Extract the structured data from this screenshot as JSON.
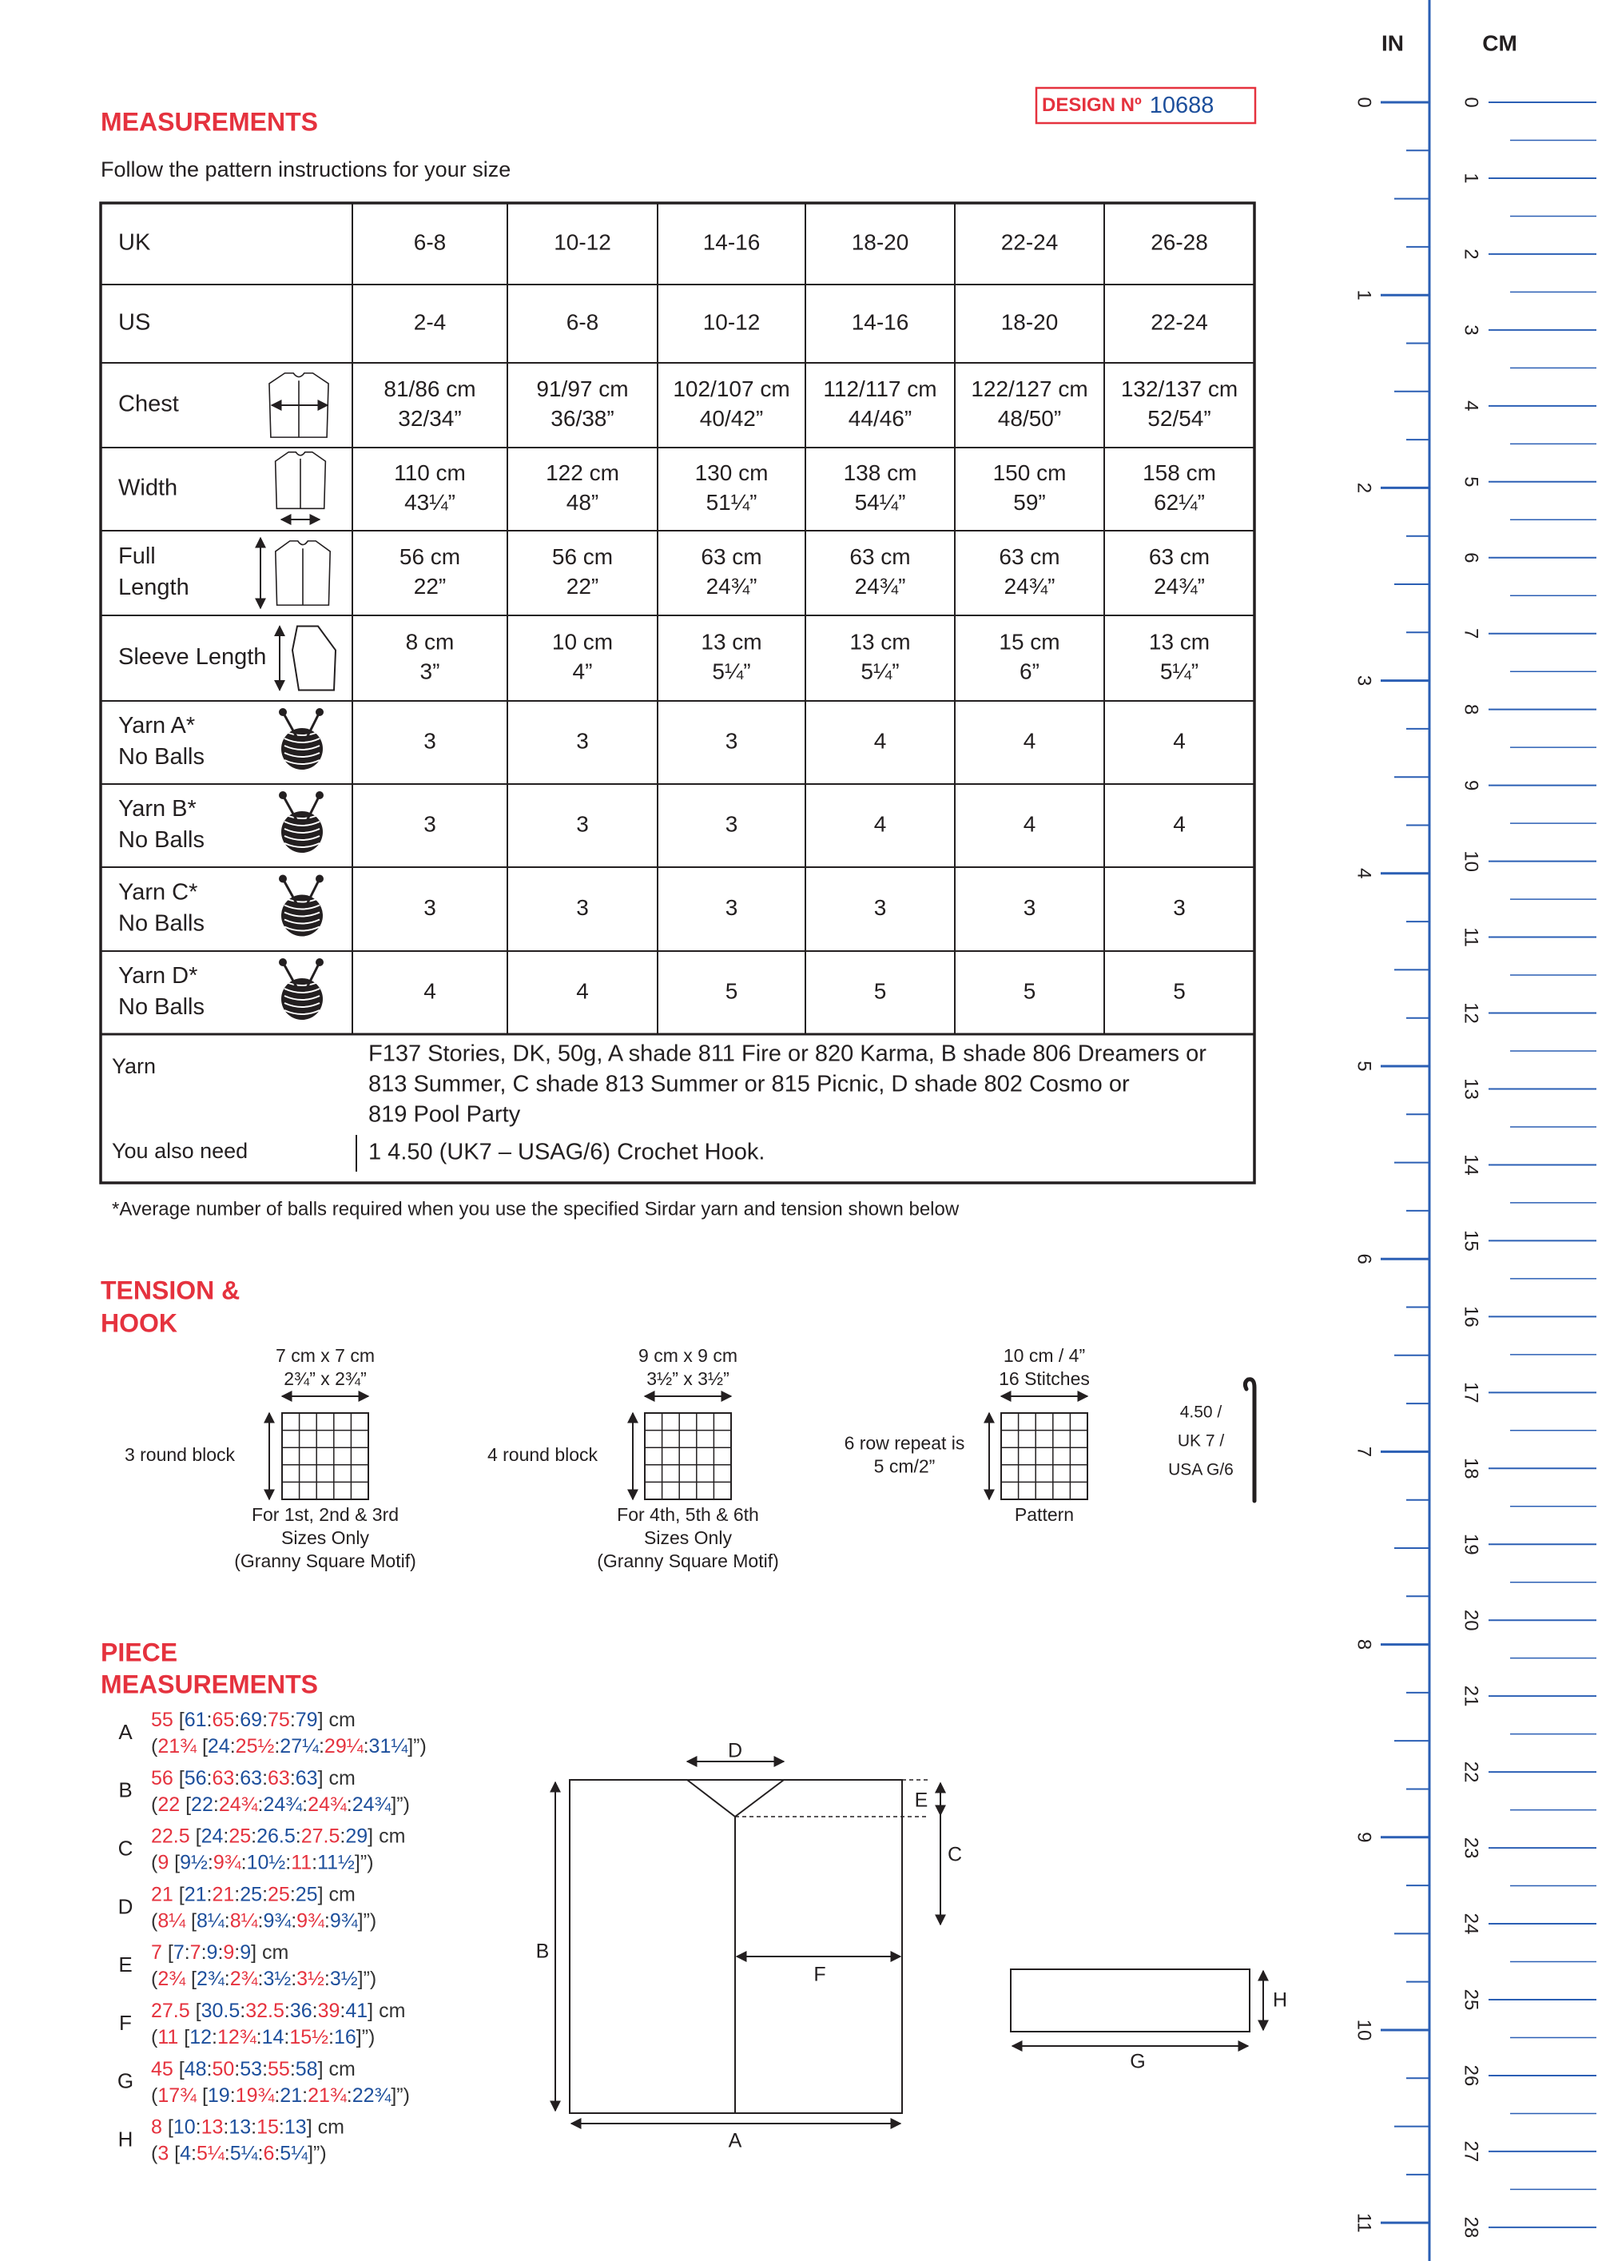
{
  "header": {
    "title": "MEASUREMENTS",
    "design_label": "DESIGN Nº",
    "design_number": "10688",
    "instruction": "Follow the pattern instructions for your size"
  },
  "table": {
    "rows": [
      {
        "label": [
          "UK"
        ],
        "cells": [
          [
            "6-8"
          ],
          [
            "10-12"
          ],
          [
            "14-16"
          ],
          [
            "18-20"
          ],
          [
            "22-24"
          ],
          [
            "26-28"
          ]
        ]
      },
      {
        "label": [
          "US"
        ],
        "cells": [
          [
            "2-4"
          ],
          [
            "6-8"
          ],
          [
            "10-12"
          ],
          [
            "14-16"
          ],
          [
            "18-20"
          ],
          [
            "22-24"
          ]
        ]
      },
      {
        "label": [
          "Chest"
        ],
        "cells": [
          [
            "81/86 cm",
            "32/34”"
          ],
          [
            "91/97 cm",
            "36/38”"
          ],
          [
            "102/107 cm",
            "40/42”"
          ],
          [
            "112/117 cm",
            "44/46”"
          ],
          [
            "122/127 cm",
            "48/50”"
          ],
          [
            "132/137 cm",
            "52/54”"
          ]
        ]
      },
      {
        "label": [
          "Width"
        ],
        "cells": [
          [
            "110 cm",
            "43¼”"
          ],
          [
            "122 cm",
            "48”"
          ],
          [
            "130 cm",
            "51¼”"
          ],
          [
            "138 cm",
            "54¼”"
          ],
          [
            "150 cm",
            "59”"
          ],
          [
            "158 cm",
            "62¼”"
          ]
        ]
      },
      {
        "label": [
          "Full",
          "Length"
        ],
        "cells": [
          [
            "56 cm",
            "22”"
          ],
          [
            "56 cm",
            "22”"
          ],
          [
            "63 cm",
            "24¾”"
          ],
          [
            "63 cm",
            "24¾”"
          ],
          [
            "63 cm",
            "24¾”"
          ],
          [
            "63 cm",
            "24¾”"
          ]
        ]
      },
      {
        "label": [
          "Sleeve Length"
        ],
        "cells": [
          [
            "8 cm",
            "3”"
          ],
          [
            "10 cm",
            "4”"
          ],
          [
            "13 cm",
            "5¼”"
          ],
          [
            "13 cm",
            "5¼”"
          ],
          [
            "15 cm",
            "6”"
          ],
          [
            "13 cm",
            "5¼”"
          ]
        ]
      },
      {
        "label": [
          "Yarn A*",
          "No Balls"
        ],
        "cells": [
          [
            "3"
          ],
          [
            "3"
          ],
          [
            "3"
          ],
          [
            "4"
          ],
          [
            "4"
          ],
          [
            "4"
          ]
        ]
      },
      {
        "label": [
          "Yarn B*",
          "No Balls"
        ],
        "cells": [
          [
            "3"
          ],
          [
            "3"
          ],
          [
            "3"
          ],
          [
            "4"
          ],
          [
            "4"
          ],
          [
            "4"
          ]
        ]
      },
      {
        "label": [
          "Yarn C*",
          "No Balls"
        ],
        "cells": [
          [
            "3"
          ],
          [
            "3"
          ],
          [
            "3"
          ],
          [
            "3"
          ],
          [
            "3"
          ],
          [
            "3"
          ]
        ]
      },
      {
        "label": [
          "Yarn D*",
          "No Balls"
        ],
        "cells": [
          [
            "4"
          ],
          [
            "4"
          ],
          [
            "5"
          ],
          [
            "5"
          ],
          [
            "5"
          ],
          [
            "5"
          ]
        ]
      }
    ],
    "yarn": {
      "label": "Yarn",
      "lines": [
        "F137 Stories, DK, 50g, A shade 811 Fire or 820 Karma, B shade 806 Dreamers or",
        "813 Summer, C shade 813 Summer or 815 Picnic, D shade 802 Cosmo or",
        "819 Pool Party"
      ]
    },
    "also_need": {
      "label": "You also need",
      "text": "1 4.50 (UK7 – USAG/6) Crochet Hook."
    },
    "footnote": "*Average number of balls required when you use the specified Sirdar yarn and tension shown below"
  },
  "tension": {
    "title": [
      "TENSION &",
      "HOOK"
    ],
    "blocks": [
      {
        "dims": [
          "7 cm x 7 cm",
          "2¾” x 2¾”"
        ],
        "side": [
          "3 round block"
        ],
        "caption": [
          "For 1st, 2nd & 3rd",
          "Sizes Only",
          "(Granny Square Motif)"
        ]
      },
      {
        "dims": [
          "9 cm x 9 cm",
          "3½” x 3½”"
        ],
        "side": [
          "4 round block"
        ],
        "caption": [
          "For 4th, 5th & 6th",
          "Sizes Only",
          "(Granny Square Motif)"
        ]
      },
      {
        "dims": [
          "10 cm / 4”",
          "16 Stitches"
        ],
        "side": [
          "6 row repeat is",
          "5 cm/2”"
        ],
        "caption": [
          "Pattern"
        ]
      }
    ],
    "hook": [
      "4.50 /",
      "UK 7 /",
      "USA G/6"
    ]
  },
  "pieces": {
    "title": [
      "PIECE",
      "MEASUREMENTS"
    ],
    "items": [
      {
        "letter": "A",
        "cm": [
          "55",
          " [",
          "61",
          ":",
          "65",
          ":",
          "69",
          ":",
          "75",
          ":",
          "79",
          "] cm"
        ],
        "inch": [
          "(",
          "21¾",
          " [",
          "24",
          ":",
          "25½",
          ":",
          "27¼",
          ":",
          "29¼",
          ":",
          "31¼",
          "]”)"
        ]
      },
      {
        "letter": "B",
        "cm": [
          "56",
          " [",
          "56",
          ":",
          "63",
          ":",
          "63",
          ":",
          "63",
          ":",
          "63",
          "] cm"
        ],
        "inch": [
          "(",
          "22",
          " [",
          "22",
          ":",
          "24¾",
          ":",
          "24¾",
          ":",
          "24¾",
          ":",
          "24¾",
          "]”)"
        ]
      },
      {
        "letter": "C",
        "cm": [
          "22.5",
          " [",
          "24",
          ":",
          "25",
          ":",
          "26.5",
          ":",
          "27.5",
          ":",
          "29",
          "] cm"
        ],
        "inch": [
          "(",
          "9",
          " [",
          "9½",
          ":",
          "9¾",
          ":",
          "10½",
          ":",
          "11",
          ":",
          "11½",
          "]”)"
        ]
      },
      {
        "letter": "D",
        "cm": [
          "21",
          " [",
          "21",
          ":",
          "21",
          ":",
          "25",
          ":",
          "25",
          ":",
          "25",
          "] cm"
        ],
        "inch": [
          "(",
          "8¼",
          " [",
          "8¼",
          ":",
          "8¼",
          ":",
          "9¾",
          ":",
          "9¾",
          ":",
          "9¾",
          "]”)"
        ]
      },
      {
        "letter": "E",
        "cm": [
          "7",
          " [",
          "7",
          ":",
          "7",
          ":",
          "9",
          ":",
          "9",
          ":",
          "9",
          "] cm"
        ],
        "inch": [
          "(",
          "2¾",
          " [",
          "2¾",
          ":",
          "2¾",
          ":",
          "3½",
          ":",
          "3½",
          ":",
          "3½",
          "]”)"
        ]
      },
      {
        "letter": "F",
        "cm": [
          "27.5",
          " [",
          "30.5",
          ":",
          "32.5",
          ":",
          "36",
          ":",
          "39",
          ":",
          "41",
          "] cm"
        ],
        "inch": [
          "(",
          "11",
          " [",
          "12",
          ":",
          "12¾",
          ":",
          "14",
          ":",
          "15½",
          ":",
          "16",
          "]”)"
        ]
      },
      {
        "letter": "G",
        "cm": [
          "45",
          " [",
          "48",
          ":",
          "50",
          ":",
          "53",
          ":",
          "55",
          ":",
          "58",
          "] cm"
        ],
        "inch": [
          "(",
          "17¾",
          " [",
          "19",
          ":",
          "19¾",
          ":",
          "21",
          ":",
          "21¾",
          ":",
          "22¾",
          "]”)"
        ]
      },
      {
        "letter": "H",
        "cm": [
          "8",
          " [",
          "10",
          ":",
          "13",
          ":",
          "13",
          ":",
          "15",
          ":",
          "13",
          "] cm"
        ],
        "inch": [
          "(",
          "3",
          " [",
          "4",
          ":",
          "5¼",
          ":",
          "5¼",
          ":",
          "6",
          ":",
          "5¼",
          "]”)"
        ]
      }
    ],
    "diagram_labels": [
      "D",
      "E",
      "C",
      "B",
      "F",
      "A",
      "G",
      "H"
    ]
  },
  "ruler": {
    "in_label": "IN",
    "cm_label": "CM",
    "inch_numbers": [
      0,
      1,
      2,
      3,
      4,
      5,
      6,
      7,
      8,
      9,
      10,
      11
    ],
    "cm_numbers": [
      0,
      1,
      2,
      3,
      4,
      5,
      6,
      7,
      8,
      9,
      10,
      11,
      12,
      13,
      14,
      15,
      16,
      17,
      18,
      19,
      20,
      21,
      22,
      23,
      24,
      25,
      26,
      27,
      28
    ]
  }
}
